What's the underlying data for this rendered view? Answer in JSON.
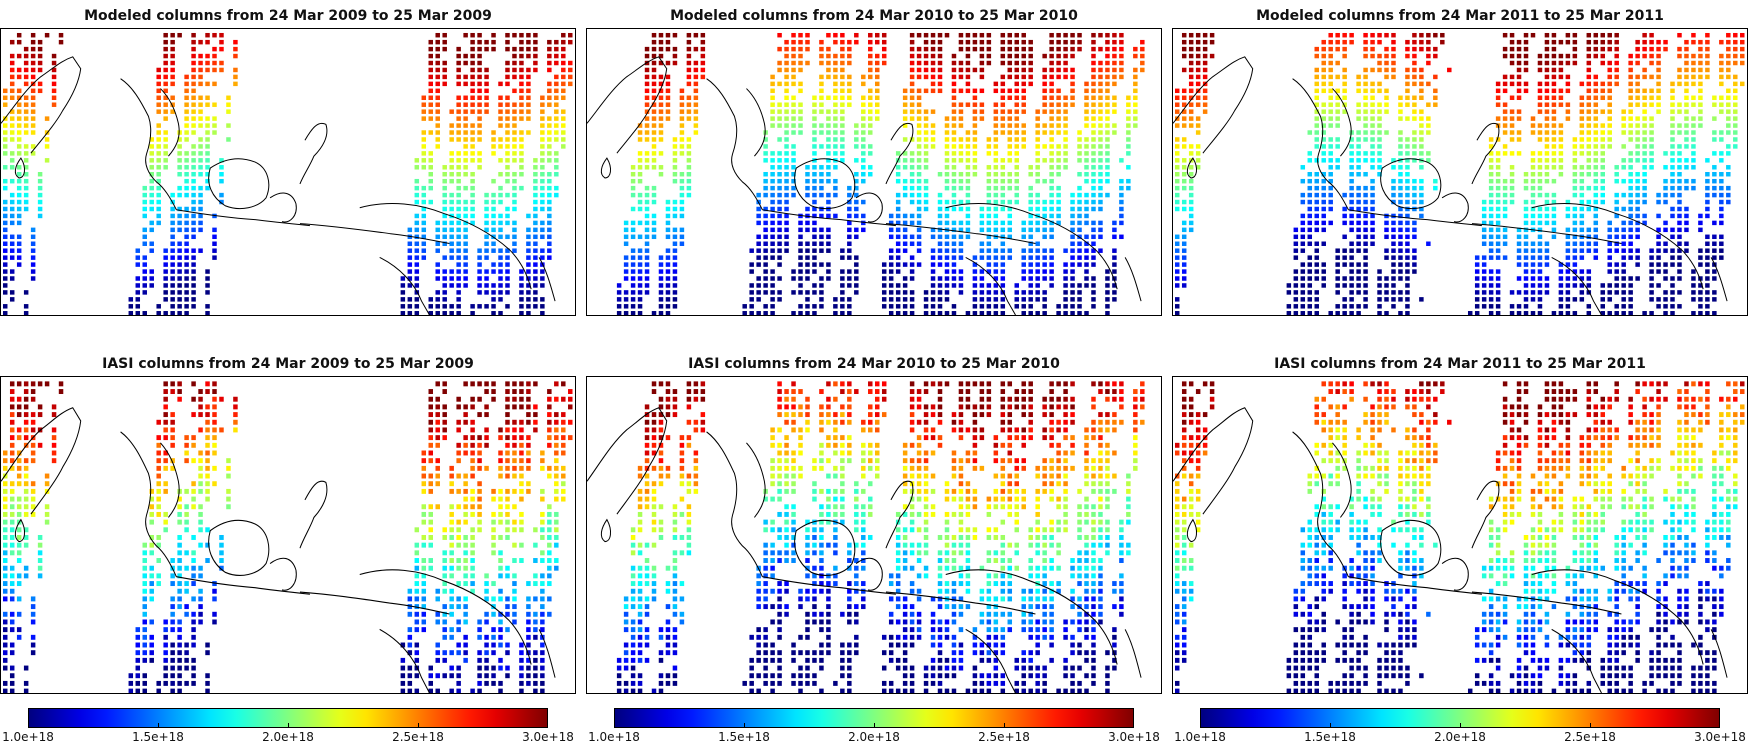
{
  "panels": [
    {
      "title": "Modeled columns from 24 Mar 2009 to 25 Mar 2009",
      "kind": "modeled",
      "year": 2009
    },
    {
      "title": "Modeled columns from 24 Mar 2010 to 25 Mar 2010",
      "kind": "modeled",
      "year": 2010
    },
    {
      "title": "Modeled columns from 24 Mar 2011 to 25 Mar 2011",
      "kind": "modeled",
      "year": 2011
    },
    {
      "title": "IASI columns from 24 Mar 2009 to 25 Mar 2009",
      "kind": "iasi",
      "year": 2009
    },
    {
      "title": "IASI columns from 24 Mar 2010 to 25 Mar 2010",
      "kind": "iasi",
      "year": 2010
    },
    {
      "title": "IASI columns from 24 Mar 2011 to 25 Mar 2011",
      "kind": "iasi",
      "year": 2011
    }
  ],
  "colorbar": {
    "ticks": [
      "1.0e+18",
      "1.5e+18",
      "2.0e+18",
      "2.5e+18",
      "3.0e+18"
    ],
    "min": 1e+18,
    "max": 3e+18,
    "colormap": "jet"
  }
}
